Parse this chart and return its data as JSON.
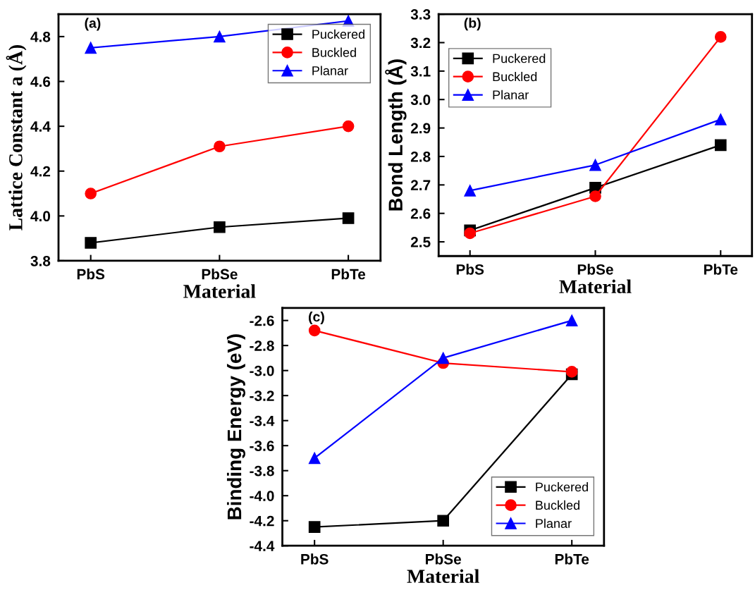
{
  "chart_data": [
    {
      "type": "line",
      "xlabel": "Material",
      "ylabel": "Lattice Constant a (Å)",
      "annotations": [
        "(a)"
      ],
      "categories": [
        "PbS",
        "PbSe",
        "PbTe"
      ],
      "ylim": [
        3.8,
        4.9
      ],
      "yticks": [
        3.8,
        {
          "value": 4.0,
          "label": "4.0"
        },
        4.2,
        4.4,
        4.6,
        4.8
      ],
      "grid": false,
      "legend": "top right",
      "series": [
        {
          "name": "Puckered",
          "color": "#000000",
          "marker": "square",
          "values": [
            3.88,
            3.95,
            3.99
          ]
        },
        {
          "name": "Buckled",
          "color": "#ff0000",
          "marker": "circle",
          "values": [
            4.1,
            4.31,
            4.4
          ]
        },
        {
          "name": "Planar",
          "color": "#0000ff",
          "marker": "triangle",
          "values": [
            4.75,
            4.8,
            4.87
          ]
        }
      ]
    },
    {
      "type": "line",
      "xlabel": "Material",
      "ylabel": "Bond Length (Å)",
      "annotations": [
        "(b)"
      ],
      "categories": [
        "PbS",
        "PbSe",
        "PbTe"
      ],
      "ylim": [
        2.45,
        3.3
      ],
      "yticks": [
        2.5,
        2.6,
        2.7,
        2.8,
        2.9,
        {
          "value": 3.0,
          "label": "3.0"
        },
        3.1,
        3.2,
        3.3
      ],
      "grid": false,
      "legend": "top left",
      "series": [
        {
          "name": "Puckered",
          "color": "#000000",
          "marker": "square",
          "values": [
            2.54,
            2.69,
            2.84
          ]
        },
        {
          "name": "Buckled",
          "color": "#ff0000",
          "marker": "circle",
          "values": [
            2.53,
            2.66,
            3.22
          ]
        },
        {
          "name": "Planar",
          "color": "#0000ff",
          "marker": "triangle",
          "values": [
            2.68,
            2.77,
            2.93
          ]
        }
      ]
    },
    {
      "type": "line",
      "xlabel": "Material",
      "ylabel": "Binding Energy (eV)",
      "annotations": [
        "(c)"
      ],
      "categories": [
        "PbS",
        "PbSe",
        "PbTe"
      ],
      "ylim": [
        -4.4,
        -2.5
      ],
      "yticks": [
        -4.4,
        -4.2,
        {
          "value": -4.0,
          "label": "-4.0"
        },
        -3.8,
        -3.6,
        -3.4,
        -3.2,
        {
          "value": -3.0,
          "label": "-3.0"
        },
        -2.8,
        -2.6
      ],
      "grid": false,
      "legend": "bottom right",
      "series": [
        {
          "name": "Puckered",
          "color": "#000000",
          "marker": "square",
          "values": [
            -4.25,
            -4.2,
            -3.03
          ]
        },
        {
          "name": "Buckled",
          "color": "#ff0000",
          "marker": "circle",
          "values": [
            -2.68,
            -2.94,
            -3.01
          ]
        },
        {
          "name": "Planar",
          "color": "#0000ff",
          "marker": "triangle",
          "values": [
            -3.7,
            -2.9,
            -2.6
          ]
        }
      ]
    }
  ]
}
